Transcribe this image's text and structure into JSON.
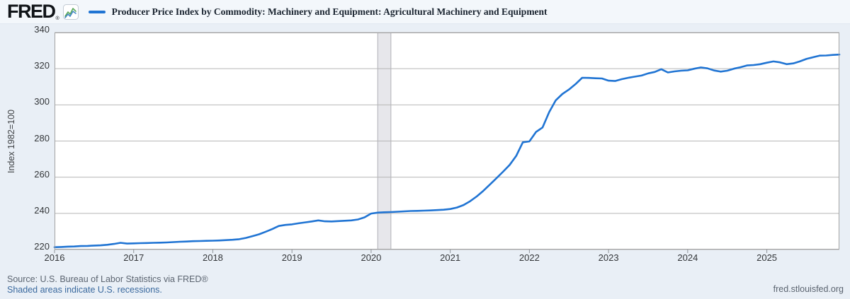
{
  "header": {
    "logo_text": "FRED",
    "logo_mark": "®"
  },
  "footer": {
    "source_line": "Source: U.S. Bureau of Labor Statistics via FRED®",
    "recession_note": "Shaded areas indicate U.S. recessions.",
    "site_url": "fred.stlouisfed.org"
  },
  "colors": {
    "line": "#2074d3",
    "grid": "#b6b6b6",
    "plot_border": "#a3a3a3",
    "plot_bg": "#ffffff",
    "band_fill": "#e7e7eb",
    "band_edge": "#b0b0b6",
    "outer_bg": "#e9eff6",
    "tick": "#8f9499"
  },
  "chart_data": {
    "type": "line",
    "title": "Producer Price Index by Commodity: Machinery and Equipment: Agricultural Machinery and Equipment",
    "xlabel": "",
    "ylabel": "Index 1982=100",
    "frequency": "monthly",
    "x_start": "2016-01",
    "x_end": "2025-12",
    "ylim": [
      220,
      340
    ],
    "yticks": [
      340,
      320,
      300,
      280,
      260,
      240,
      220
    ],
    "xticks": [
      "2016",
      "2017",
      "2018",
      "2019",
      "2020",
      "2021",
      "2022",
      "2023",
      "2024",
      "2025"
    ],
    "grid": "horizontal-only",
    "legend_position": "top",
    "line_color": "#2074d3",
    "recession_bands": [
      {
        "start": "2020-02",
        "end": "2020-04"
      }
    ],
    "series": [
      {
        "name": "Producer Price Index by Commodity: Machinery and Equipment: Agricultural Machinery and Equipment",
        "values": [
          221.3,
          221.4,
          221.6,
          221.7,
          221.9,
          222.0,
          222.2,
          222.3,
          222.6,
          223.1,
          223.7,
          223.3,
          223.4,
          223.5,
          223.6,
          223.7,
          223.8,
          223.9,
          224.1,
          224.3,
          224.4,
          224.6,
          224.7,
          224.8,
          224.9,
          225.0,
          225.2,
          225.4,
          225.7,
          226.4,
          227.4,
          228.4,
          229.8,
          231.3,
          233.0,
          233.6,
          233.9,
          234.5,
          235.0,
          235.5,
          236.1,
          235.6,
          235.5,
          235.7,
          235.9,
          236.1,
          236.6,
          237.8,
          239.9,
          240.4,
          240.6,
          240.7,
          240.9,
          241.1,
          241.3,
          241.4,
          241.5,
          241.6,
          241.8,
          242.0,
          242.4,
          243.2,
          244.6,
          246.7,
          249.3,
          252.4,
          255.9,
          259.4,
          263.0,
          266.8,
          271.8,
          279.3,
          279.8,
          285.0,
          287.5,
          296.0,
          302.5,
          306.0,
          308.5,
          311.5,
          315.0,
          314.9,
          314.7,
          314.6,
          313.4,
          313.2,
          314.2,
          315.0,
          315.6,
          316.2,
          317.4,
          318.2,
          319.7,
          317.9,
          318.5,
          318.9,
          319.1,
          320.0,
          320.7,
          320.2,
          319.0,
          318.4,
          318.9,
          320.0,
          320.8,
          321.8,
          322.0,
          322.5,
          323.3,
          324.0,
          323.5,
          322.5,
          322.9,
          324.0,
          325.4,
          326.3,
          327.2,
          327.3,
          327.6,
          327.8
        ]
      }
    ]
  }
}
